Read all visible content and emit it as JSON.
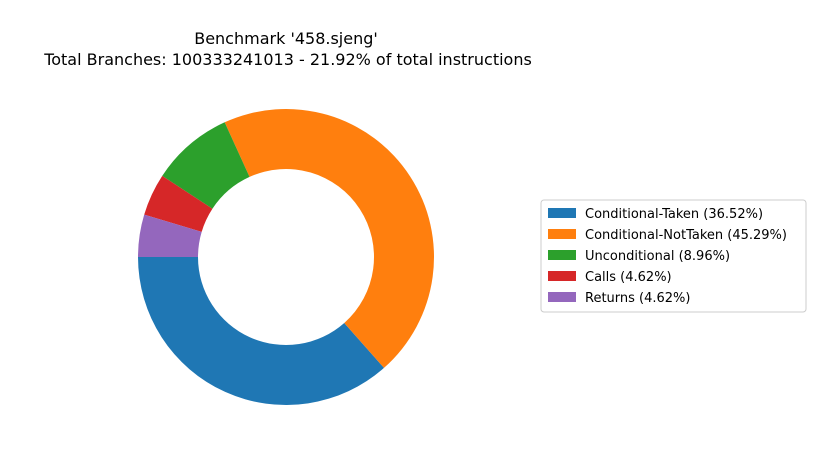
{
  "chart_data": {
    "type": "pie",
    "style": "donut",
    "title_line1": "Benchmark '458.sjeng'",
    "title_line2": "Total Branches: 100333241013 - 21.92% of total instructions",
    "legend_position": "right",
    "series": [
      {
        "name": "Conditional-Taken",
        "value": 36.52,
        "color": "#1f77b4",
        "legend_label": "Conditional-Taken (36.52%)"
      },
      {
        "name": "Conditional-NotTaken",
        "value": 45.29,
        "color": "#ff7f0e",
        "legend_label": "Conditional-NotTaken (45.29%)"
      },
      {
        "name": "Unconditional",
        "value": 8.96,
        "color": "#2ca02c",
        "legend_label": "Unconditional (8.96%)"
      },
      {
        "name": "Calls",
        "value": 4.62,
        "color": "#d62728",
        "legend_label": "Calls (4.62%)"
      },
      {
        "name": "Returns",
        "value": 4.62,
        "color": "#9467bd",
        "legend_label": "Returns (4.62%)"
      }
    ]
  }
}
